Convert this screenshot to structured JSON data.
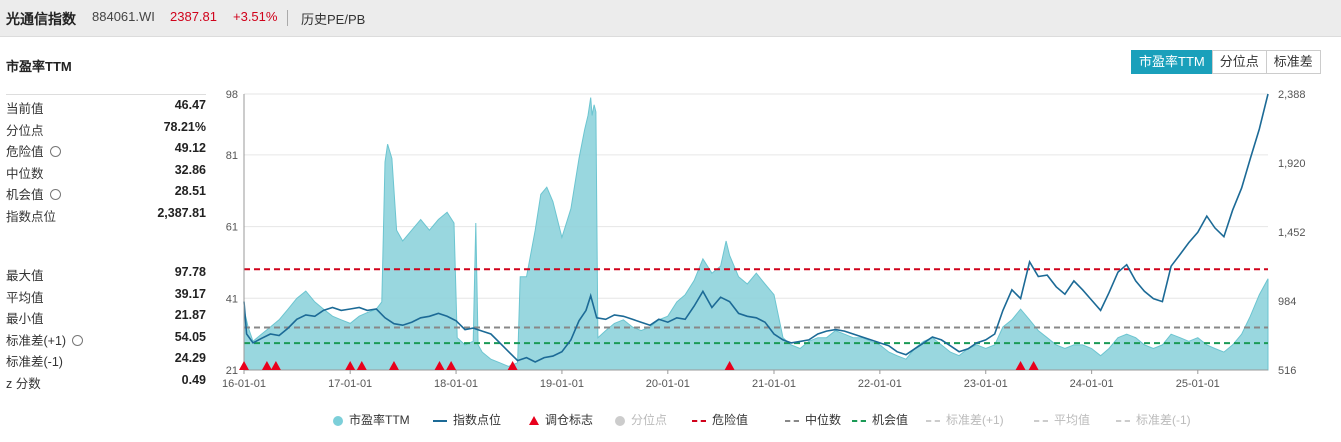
{
  "header": {
    "title": "光通信指数",
    "code": "884061.WI",
    "price": "2387.81",
    "change": "+3.51%",
    "link": "历史PE/PB"
  },
  "section_title": "市盈率TTM",
  "tabs": [
    {
      "label": "市盈率TTM",
      "active": true
    },
    {
      "label": "分位点",
      "active": false
    },
    {
      "label": "标准差",
      "active": false
    }
  ],
  "stats_top": [
    {
      "label": "当前值",
      "value": "46.47",
      "gear": false
    },
    {
      "label": "分位点",
      "value": "78.21%",
      "gear": false
    },
    {
      "label": "危险值",
      "value": "49.12",
      "gear": true
    },
    {
      "label": "中位数",
      "value": "32.86",
      "gear": false
    },
    {
      "label": "机会值",
      "value": "28.51",
      "gear": true
    },
    {
      "label": "指数点位",
      "value": "2,387.81",
      "gear": false
    }
  ],
  "stats_bottom": [
    {
      "label": "最大值",
      "value": "97.78",
      "gear": false
    },
    {
      "label": "平均值",
      "value": "39.17",
      "gear": false
    },
    {
      "label": "最小值",
      "value": "21.87",
      "gear": false
    },
    {
      "label": "标准差(+1)",
      "value": "54.05",
      "gear": true
    },
    {
      "label": "标准差(-1)",
      "value": "24.29",
      "gear": false
    },
    {
      "label": "z 分数",
      "value": "0.49",
      "gear": false
    }
  ],
  "colors": {
    "pe_fill": "#8fd3dc",
    "pe_line": "#5dbfcc",
    "index_line": "#1c6a96",
    "danger": "#d0021b",
    "median": "#888888",
    "opportunity": "#1a9a56",
    "marker": "#e8001c",
    "tab_active": "#1aa0bb"
  },
  "chart_data": {
    "type": "area+line",
    "x_ticks": [
      "16-01-01",
      "17-01-01",
      "18-01-01",
      "19-01-01",
      "20-01-01",
      "21-01-01",
      "22-01-01",
      "23-01-01",
      "24-01-01",
      "25-01-01"
    ],
    "x_range": [
      "2016-01-01",
      "2025-08-31"
    ],
    "y_left_ticks": [
      "21",
      "41",
      "61",
      "81",
      "98"
    ],
    "y_left_range": [
      21,
      98
    ],
    "y_right_ticks": [
      "516",
      "984",
      "1,452",
      "1,920",
      "2,388"
    ],
    "y_right_range": [
      516,
      2388
    ],
    "reference_lines": {
      "danger": 49.12,
      "median": 32.86,
      "opportunity": 28.51
    },
    "series_pe": {
      "name": "市盈率TTM",
      "points": [
        [
          "2016-01-01",
          38
        ],
        [
          "2016-01-15",
          33
        ],
        [
          "2016-02-01",
          29
        ],
        [
          "2016-03-01",
          31
        ],
        [
          "2016-04-01",
          33
        ],
        [
          "2016-05-01",
          35
        ],
        [
          "2016-06-01",
          38
        ],
        [
          "2016-07-01",
          41
        ],
        [
          "2016-08-01",
          43
        ],
        [
          "2016-09-01",
          40
        ],
        [
          "2016-10-01",
          38
        ],
        [
          "2016-11-01",
          36
        ],
        [
          "2016-12-01",
          35
        ],
        [
          "2017-01-01",
          34
        ],
        [
          "2017-02-01",
          36
        ],
        [
          "2017-03-01",
          37
        ],
        [
          "2017-04-01",
          38
        ],
        [
          "2017-04-20",
          40
        ],
        [
          "2017-05-01",
          79
        ],
        [
          "2017-05-10",
          84
        ],
        [
          "2017-05-25",
          80
        ],
        [
          "2017-06-10",
          60
        ],
        [
          "2017-07-01",
          57
        ],
        [
          "2017-08-01",
          60
        ],
        [
          "2017-09-01",
          63
        ],
        [
          "2017-10-01",
          60
        ],
        [
          "2017-11-01",
          63
        ],
        [
          "2017-12-01",
          65
        ],
        [
          "2017-12-25",
          62
        ],
        [
          "2018-01-05",
          30
        ],
        [
          "2018-02-01",
          28
        ],
        [
          "2018-03-01",
          29
        ],
        [
          "2018-03-10",
          62
        ],
        [
          "2018-03-18",
          28
        ],
        [
          "2018-04-01",
          26
        ],
        [
          "2018-05-01",
          24
        ],
        [
          "2018-06-01",
          23
        ],
        [
          "2018-07-01",
          22
        ],
        [
          "2018-08-01",
          23
        ],
        [
          "2018-08-10",
          47
        ],
        [
          "2018-09-01",
          47
        ],
        [
          "2018-10-01",
          60
        ],
        [
          "2018-10-20",
          70
        ],
        [
          "2018-11-10",
          72
        ],
        [
          "2018-12-01",
          68
        ],
        [
          "2019-01-01",
          58
        ],
        [
          "2019-02-01",
          66
        ],
        [
          "2019-03-01",
          80
        ],
        [
          "2019-03-20",
          88
        ],
        [
          "2019-04-01",
          92
        ],
        [
          "2019-04-10",
          97
        ],
        [
          "2019-04-15",
          92
        ],
        [
          "2019-04-22",
          95
        ],
        [
          "2019-04-28",
          93
        ],
        [
          "2019-05-05",
          30
        ],
        [
          "2019-06-01",
          32
        ],
        [
          "2019-07-01",
          34
        ],
        [
          "2019-08-01",
          35
        ],
        [
          "2019-09-01",
          33
        ],
        [
          "2019-10-01",
          32
        ],
        [
          "2019-11-01",
          33
        ],
        [
          "2019-12-01",
          35
        ],
        [
          "2020-01-01",
          36
        ],
        [
          "2020-02-01",
          40
        ],
        [
          "2020-03-01",
          42
        ],
        [
          "2020-04-01",
          46
        ],
        [
          "2020-05-01",
          52
        ],
        [
          "2020-06-01",
          48
        ],
        [
          "2020-07-01",
          50
        ],
        [
          "2020-07-20",
          57
        ],
        [
          "2020-08-01",
          53
        ],
        [
          "2020-09-01",
          47
        ],
        [
          "2020-10-01",
          45
        ],
        [
          "2020-11-01",
          48
        ],
        [
          "2020-12-01",
          45
        ],
        [
          "2021-01-01",
          42
        ],
        [
          "2021-02-01",
          30
        ],
        [
          "2021-03-01",
          28
        ],
        [
          "2021-04-01",
          27
        ],
        [
          "2021-05-01",
          29
        ],
        [
          "2021-06-01",
          30
        ],
        [
          "2021-07-01",
          30
        ],
        [
          "2021-08-01",
          32
        ],
        [
          "2021-09-01",
          31
        ],
        [
          "2021-10-01",
          30
        ],
        [
          "2021-11-01",
          30
        ],
        [
          "2021-12-01",
          29
        ],
        [
          "2022-01-01",
          28
        ],
        [
          "2022-02-01",
          26
        ],
        [
          "2022-03-01",
          25
        ],
        [
          "2022-04-01",
          24
        ],
        [
          "2022-05-01",
          27
        ],
        [
          "2022-06-01",
          29
        ],
        [
          "2022-07-01",
          30
        ],
        [
          "2022-08-01",
          28
        ],
        [
          "2022-09-01",
          26
        ],
        [
          "2022-10-01",
          25
        ],
        [
          "2022-11-01",
          27
        ],
        [
          "2022-12-01",
          28
        ],
        [
          "2023-01-01",
          27
        ],
        [
          "2023-02-01",
          28
        ],
        [
          "2023-03-01",
          33
        ],
        [
          "2023-04-01",
          35
        ],
        [
          "2023-05-01",
          38
        ],
        [
          "2023-06-01",
          35
        ],
        [
          "2023-07-01",
          32
        ],
        [
          "2023-08-01",
          30
        ],
        [
          "2023-09-01",
          28
        ],
        [
          "2023-10-01",
          27
        ],
        [
          "2023-11-01",
          28
        ],
        [
          "2023-12-01",
          28
        ],
        [
          "2024-01-01",
          27
        ],
        [
          "2024-02-01",
          25
        ],
        [
          "2024-03-01",
          27
        ],
        [
          "2024-04-01",
          30
        ],
        [
          "2024-05-01",
          31
        ],
        [
          "2024-06-01",
          30
        ],
        [
          "2024-07-01",
          28
        ],
        [
          "2024-08-01",
          27
        ],
        [
          "2024-09-01",
          28
        ],
        [
          "2024-10-01",
          31
        ],
        [
          "2024-11-01",
          30
        ],
        [
          "2024-12-01",
          29
        ],
        [
          "2025-01-01",
          30
        ],
        [
          "2025-02-01",
          28
        ],
        [
          "2025-03-01",
          27
        ],
        [
          "2025-04-01",
          26
        ],
        [
          "2025-05-01",
          28
        ],
        [
          "2025-06-01",
          31
        ],
        [
          "2025-07-01",
          36
        ],
        [
          "2025-08-01",
          42
        ],
        [
          "2025-08-31",
          46.47
        ]
      ]
    },
    "series_index": {
      "name": "指数点位",
      "points": [
        [
          "2016-01-01",
          980
        ],
        [
          "2016-01-10",
          760
        ],
        [
          "2016-02-01",
          700
        ],
        [
          "2016-03-01",
          730
        ],
        [
          "2016-04-01",
          760
        ],
        [
          "2016-05-01",
          750
        ],
        [
          "2016-06-01",
          800
        ],
        [
          "2016-07-01",
          860
        ],
        [
          "2016-08-01",
          890
        ],
        [
          "2016-09-01",
          880
        ],
        [
          "2016-10-01",
          920
        ],
        [
          "2016-11-01",
          940
        ],
        [
          "2016-12-01",
          920
        ],
        [
          "2017-01-01",
          930
        ],
        [
          "2017-02-01",
          940
        ],
        [
          "2017-03-01",
          920
        ],
        [
          "2017-04-01",
          930
        ],
        [
          "2017-05-01",
          870
        ],
        [
          "2017-06-01",
          830
        ],
        [
          "2017-07-01",
          820
        ],
        [
          "2017-08-01",
          840
        ],
        [
          "2017-09-01",
          870
        ],
        [
          "2017-10-01",
          880
        ],
        [
          "2017-11-01",
          900
        ],
        [
          "2017-12-01",
          880
        ],
        [
          "2018-01-01",
          850
        ],
        [
          "2018-02-01",
          790
        ],
        [
          "2018-03-01",
          800
        ],
        [
          "2018-04-01",
          780
        ],
        [
          "2018-05-01",
          760
        ],
        [
          "2018-06-01",
          700
        ],
        [
          "2018-07-01",
          640
        ],
        [
          "2018-08-01",
          580
        ],
        [
          "2018-09-01",
          600
        ],
        [
          "2018-10-01",
          570
        ],
        [
          "2018-11-01",
          600
        ],
        [
          "2018-12-01",
          610
        ],
        [
          "2019-01-01",
          640
        ],
        [
          "2019-02-01",
          720
        ],
        [
          "2019-03-01",
          850
        ],
        [
          "2019-03-25",
          920
        ],
        [
          "2019-04-10",
          1020
        ],
        [
          "2019-05-01",
          870
        ],
        [
          "2019-06-01",
          860
        ],
        [
          "2019-07-01",
          890
        ],
        [
          "2019-08-01",
          880
        ],
        [
          "2019-09-01",
          860
        ],
        [
          "2019-10-01",
          840
        ],
        [
          "2019-11-01",
          820
        ],
        [
          "2019-12-01",
          860
        ],
        [
          "2020-01-01",
          840
        ],
        [
          "2020-02-01",
          870
        ],
        [
          "2020-03-01",
          860
        ],
        [
          "2020-04-01",
          950
        ],
        [
          "2020-05-01",
          1050
        ],
        [
          "2020-06-01",
          940
        ],
        [
          "2020-07-01",
          1010
        ],
        [
          "2020-08-01",
          980
        ],
        [
          "2020-09-01",
          900
        ],
        [
          "2020-10-01",
          880
        ],
        [
          "2020-11-01",
          870
        ],
        [
          "2020-12-01",
          840
        ],
        [
          "2021-01-01",
          760
        ],
        [
          "2021-02-01",
          720
        ],
        [
          "2021-03-01",
          700
        ],
        [
          "2021-04-01",
          710
        ],
        [
          "2021-05-01",
          720
        ],
        [
          "2021-06-01",
          760
        ],
        [
          "2021-07-01",
          780
        ],
        [
          "2021-08-01",
          790
        ],
        [
          "2021-09-01",
          780
        ],
        [
          "2021-10-01",
          760
        ],
        [
          "2021-11-01",
          740
        ],
        [
          "2021-12-01",
          720
        ],
        [
          "2022-01-01",
          700
        ],
        [
          "2022-02-01",
          680
        ],
        [
          "2022-03-01",
          640
        ],
        [
          "2022-04-01",
          620
        ],
        [
          "2022-05-01",
          660
        ],
        [
          "2022-06-01",
          700
        ],
        [
          "2022-07-01",
          740
        ],
        [
          "2022-08-01",
          720
        ],
        [
          "2022-09-01",
          680
        ],
        [
          "2022-10-01",
          640
        ],
        [
          "2022-11-01",
          660
        ],
        [
          "2022-12-01",
          700
        ],
        [
          "2023-01-01",
          720
        ],
        [
          "2023-02-01",
          760
        ],
        [
          "2023-03-01",
          920
        ],
        [
          "2023-04-01",
          1060
        ],
        [
          "2023-05-01",
          1000
        ],
        [
          "2023-06-01",
          1250
        ],
        [
          "2023-07-01",
          1150
        ],
        [
          "2023-08-01",
          1160
        ],
        [
          "2023-09-01",
          1080
        ],
        [
          "2023-10-01",
          1030
        ],
        [
          "2023-11-01",
          1120
        ],
        [
          "2023-12-01",
          1060
        ],
        [
          "2024-01-01",
          990
        ],
        [
          "2024-02-01",
          920
        ],
        [
          "2024-03-01",
          1040
        ],
        [
          "2024-04-01",
          1180
        ],
        [
          "2024-05-01",
          1230
        ],
        [
          "2024-06-01",
          1120
        ],
        [
          "2024-07-01",
          1050
        ],
        [
          "2024-08-01",
          1000
        ],
        [
          "2024-09-01",
          980
        ],
        [
          "2024-10-01",
          1220
        ],
        [
          "2024-11-01",
          1300
        ],
        [
          "2024-12-01",
          1380
        ],
        [
          "2025-01-01",
          1450
        ],
        [
          "2025-02-01",
          1560
        ],
        [
          "2025-03-01",
          1480
        ],
        [
          "2025-04-01",
          1420
        ],
        [
          "2025-05-01",
          1600
        ],
        [
          "2025-06-01",
          1750
        ],
        [
          "2025-07-01",
          1950
        ],
        [
          "2025-08-01",
          2150
        ],
        [
          "2025-08-31",
          2387.81
        ]
      ]
    },
    "markers": {
      "name": "调仓标志",
      "dates": [
        "2016-01-01",
        "2016-03-20",
        "2016-04-20",
        "2017-01-01",
        "2017-02-10",
        "2017-06-01",
        "2017-11-05",
        "2017-12-15",
        "2018-07-15",
        "2020-08-01",
        "2023-05-01",
        "2023-06-15"
      ]
    },
    "legend": [
      {
        "name": "市盈率TTM",
        "symbol": "dot",
        "color": "#7ccfd9",
        "muted": false
      },
      {
        "name": "指数点位",
        "symbol": "line",
        "color": "#1c6a96",
        "muted": false
      },
      {
        "name": "调仓标志",
        "symbol": "triangle",
        "color": "#e8001c",
        "muted": false
      },
      {
        "name": "分位点",
        "symbol": "dot",
        "color": "#cccccc",
        "muted": true
      },
      {
        "name": "危险值",
        "symbol": "dash",
        "color": "#d0021b",
        "muted": false
      },
      {
        "name": "中位数",
        "symbol": "dash",
        "color": "#888888",
        "muted": false
      },
      {
        "name": "机会值",
        "symbol": "dash",
        "color": "#1a9a56",
        "muted": false
      },
      {
        "name": "标准差(+1)",
        "symbol": "dash",
        "color": "#cccccc",
        "muted": true
      },
      {
        "name": "平均值",
        "symbol": "dash",
        "color": "#cccccc",
        "muted": true
      },
      {
        "name": "标准差(-1)",
        "symbol": "dash",
        "color": "#cccccc",
        "muted": true
      }
    ]
  }
}
